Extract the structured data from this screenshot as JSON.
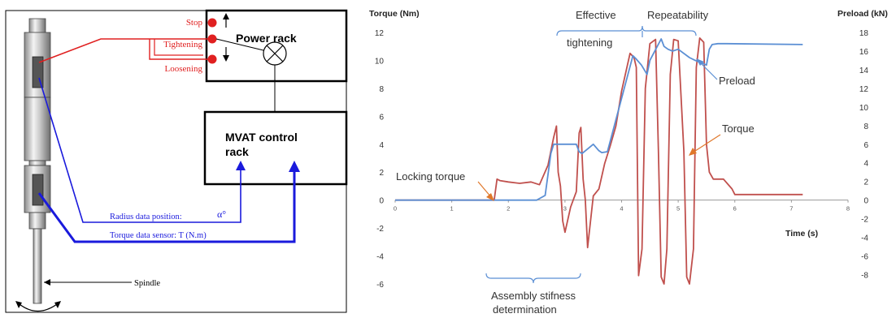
{
  "diagram": {
    "labels": {
      "stop": "Stop",
      "tightening": "Tightening",
      "loosening": "Loosening",
      "power_rack": "Power rack",
      "mvat_line1": "MVAT control",
      "mvat_line2": "rack",
      "radius_data": "Radius data position:",
      "alpha": "α°",
      "torque_data": "Torque data sensor: T (N.m)",
      "spindle": "Spindle"
    },
    "colors": {
      "red": "#e02020",
      "blue": "#1a1adc",
      "black": "#000000"
    }
  },
  "chart_data": {
    "type": "line",
    "x_ticks": [
      "0",
      "1",
      "2",
      "3",
      "4",
      "5",
      "6",
      "7",
      "8"
    ],
    "xlabel": "Time (s)",
    "y_left": {
      "label": "Torque (Nm)",
      "ticks": [
        "12",
        "10",
        "8",
        "6",
        "4",
        "2",
        "0",
        "-2",
        "-4",
        "-6"
      ],
      "range": [
        -6,
        12
      ]
    },
    "y_right": {
      "label": "Preload (kN)",
      "ticks": [
        "18",
        "16",
        "14",
        "12",
        "10",
        "8",
        "6",
        "4",
        "2",
        "0",
        "-2",
        "-4",
        "-6",
        "-8"
      ],
      "range": [
        -9,
        18
      ]
    },
    "xlim": [
      0,
      8
    ],
    "series": [
      {
        "name": "Torque",
        "axis": "left",
        "color": "#c0504d",
        "x": [
          0,
          1.75,
          1.8,
          1.85,
          2.0,
          2.2,
          2.4,
          2.55,
          2.7,
          2.8,
          2.85,
          2.88,
          2.92,
          2.96,
          3.0,
          3.1,
          3.2,
          3.25,
          3.28,
          3.32,
          3.36,
          3.4,
          3.5,
          3.6,
          3.7,
          3.8,
          3.9,
          4.0,
          4.15,
          4.22,
          4.26,
          4.3,
          4.36,
          4.42,
          4.5,
          4.6,
          4.65,
          4.7,
          4.75,
          4.8,
          4.86,
          4.92,
          5.0,
          5.1,
          5.15,
          5.2,
          5.27,
          5.32,
          5.38,
          5.45,
          5.5,
          5.55,
          5.62,
          5.7,
          5.8,
          5.95,
          6.0,
          7.2
        ],
        "y": [
          0,
          0,
          1.5,
          1.4,
          1.3,
          1.2,
          1.3,
          1.1,
          2.5,
          4.5,
          5.3,
          2.0,
          1.0,
          -1.5,
          -2.3,
          -0.5,
          0.6,
          4.8,
          5.2,
          1.5,
          0,
          -3.4,
          0.3,
          0.8,
          2.6,
          3.9,
          5.3,
          7.8,
          10.5,
          10.2,
          9.5,
          -5.4,
          -3.5,
          8.0,
          11.2,
          11.5,
          3.5,
          -5.5,
          -6.0,
          -3.5,
          9.0,
          11.5,
          11.4,
          3.5,
          -5.5,
          -6.0,
          -3.5,
          9.5,
          11.6,
          11.3,
          4.0,
          2.0,
          1.5,
          1.5,
          1.5,
          0.8,
          0.4,
          0.4
        ]
      },
      {
        "name": "Preload",
        "axis": "right",
        "color": "#5b8fd4",
        "x": [
          0,
          2.5,
          2.65,
          2.75,
          2.8,
          3.2,
          3.25,
          3.3,
          3.5,
          3.6,
          3.65,
          3.75,
          4.2,
          4.25,
          4.35,
          4.45,
          4.5,
          4.7,
          4.75,
          4.82,
          4.9,
          5.0,
          5.2,
          5.3,
          5.5,
          5.55,
          5.6,
          5.7,
          5.85,
          7.2
        ],
        "y": [
          0,
          0,
          0.5,
          5.0,
          6.0,
          6.0,
          5.2,
          5.0,
          6.0,
          5.3,
          5.1,
          5.2,
          15.5,
          15.2,
          14.5,
          13.5,
          15.0,
          17.3,
          16.5,
          16.2,
          16.0,
          16.2,
          15.3,
          15.0,
          14.5,
          16.2,
          16.7,
          16.8,
          16.8,
          16.7
        ]
      }
    ],
    "annotations": {
      "effective_line1": "Effective",
      "effective_line2": "tightening",
      "repeatability": "Repeatability",
      "preload": "Preload",
      "torque": "Torque",
      "locking_torque": "Locking torque",
      "assembly_line1": "Assembly stifness",
      "assembly_line2": "determination"
    }
  }
}
